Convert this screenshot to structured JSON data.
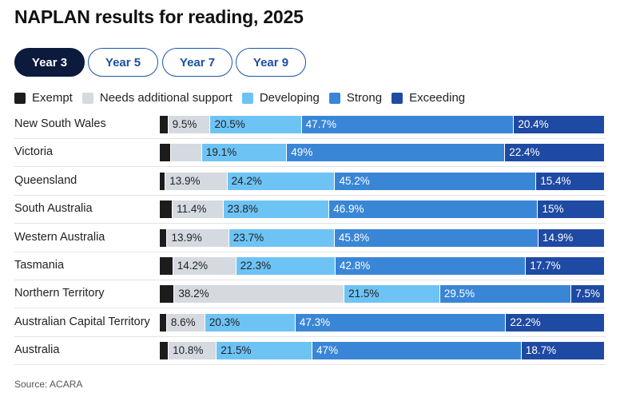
{
  "title": "NAPLAN results for reading, 2025",
  "tabs": [
    {
      "label": "Year 3",
      "active": true
    },
    {
      "label": "Year 5",
      "active": false
    },
    {
      "label": "Year 7",
      "active": false
    },
    {
      "label": "Year 9",
      "active": false
    }
  ],
  "source": "Source: ACARA",
  "colors": {
    "Exempt": "#1c1c1c",
    "Needs additional support": "#d5d9e0",
    "Developing": "#6ec3f5",
    "Strong": "#3a86d6",
    "Exceeding": "#1f4aa3"
  },
  "chart_data": {
    "type": "bar",
    "orientation": "horizontal",
    "stacked": true,
    "percent_stacked": true,
    "categories": [
      "New South Wales",
      "Victoria",
      "Queensland",
      "South Australia",
      "Western Australia",
      "Tasmania",
      "Northern Territory",
      "Australian Capital Territory",
      "Australia"
    ],
    "legend_position": "top-left",
    "series": [
      {
        "name": "Exempt",
        "values": [
          1.9,
          2.6,
          1.3,
          2.9,
          1.7,
          3.0,
          3.3,
          1.6,
          2.0
        ]
      },
      {
        "name": "Needs additional support",
        "values": [
          9.5,
          6.9,
          13.9,
          11.4,
          13.9,
          14.2,
          38.2,
          8.6,
          10.8
        ]
      },
      {
        "name": "Developing",
        "values": [
          20.5,
          19.1,
          24.2,
          23.8,
          23.7,
          22.3,
          21.5,
          20.3,
          21.5
        ]
      },
      {
        "name": "Strong",
        "values": [
          47.7,
          49.0,
          45.2,
          46.9,
          45.8,
          42.8,
          29.5,
          47.3,
          47.0
        ]
      },
      {
        "name": "Exceeding",
        "values": [
          20.4,
          22.4,
          15.4,
          15.0,
          14.9,
          17.7,
          7.5,
          22.2,
          18.7
        ]
      }
    ],
    "data_labels": [
      [
        "",
        "9.5%",
        "20.5%",
        "47.7%",
        "20.4%"
      ],
      [
        "",
        "",
        "19.1%",
        "49%",
        "22.4%"
      ],
      [
        "",
        "13.9%",
        "24.2%",
        "45.2%",
        "15.4%"
      ],
      [
        "",
        "11.4%",
        "23.8%",
        "46.9%",
        "15%"
      ],
      [
        "",
        "13.9%",
        "23.7%",
        "45.8%",
        "14.9%"
      ],
      [
        "",
        "14.2%",
        "22.3%",
        "42.8%",
        "17.7%"
      ],
      [
        "",
        "38.2%",
        "21.5%",
        "29.5%",
        "7.5%"
      ],
      [
        "",
        "8.6%",
        "20.3%",
        "47.3%",
        "22.2%"
      ],
      [
        "",
        "10.8%",
        "21.5%",
        "47%",
        "18.7%"
      ]
    ],
    "label_colors": [
      "#ffffff",
      "#222222",
      "#222222",
      "#ffffff",
      "#ffffff"
    ]
  }
}
